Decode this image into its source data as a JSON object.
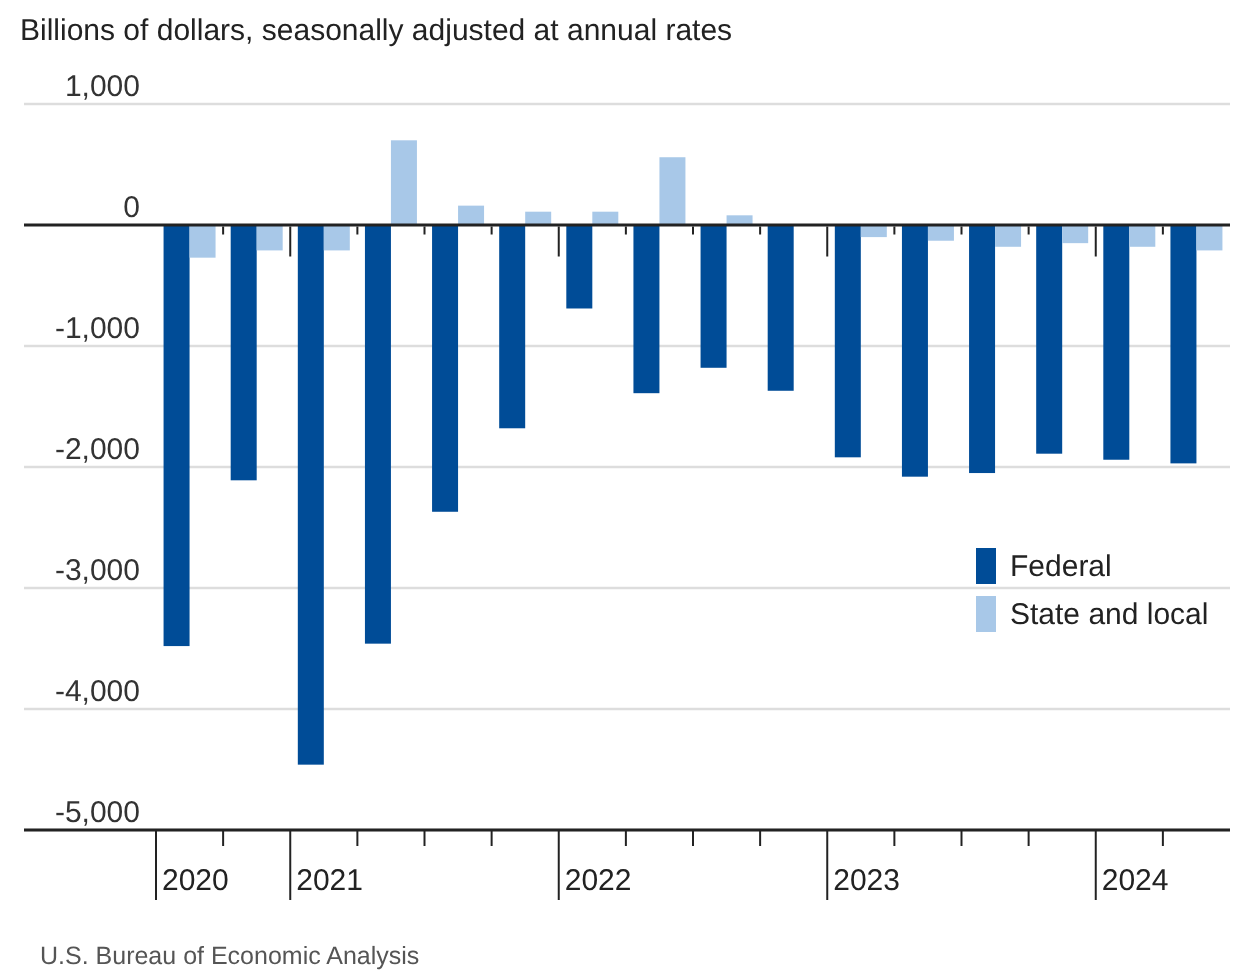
{
  "chart_data": {
    "type": "bar",
    "ylabel": "Billions of dollars, seasonally adjusted at annual rates",
    "categories": [
      "2020",
      null,
      "2021",
      null,
      null,
      null,
      "2022",
      null,
      null,
      null,
      "2023",
      null,
      null,
      null,
      "2024",
      null
    ],
    "series": [
      {
        "name": "Federal",
        "color": "#004c97",
        "values": [
          -3480,
          -2110,
          -4460,
          -3460,
          -2370,
          -1680,
          -690,
          -1390,
          -1180,
          -1370,
          -1920,
          -2080,
          -2050,
          -1890,
          -1940,
          -1970
        ]
      },
      {
        "name": "State and local",
        "color": "#a8c8e8",
        "values": [
          -270,
          -210,
          -210,
          700,
          160,
          110,
          110,
          560,
          80,
          0,
          -100,
          -130,
          -180,
          -150,
          -180,
          -210
        ]
      }
    ],
    "ylim": [
      -5000,
      1000
    ],
    "yticks": [
      {
        "value": -5000,
        "label": "-5,000"
      },
      {
        "value": -4000,
        "label": "-4,000"
      },
      {
        "value": -3000,
        "label": "-3,000"
      },
      {
        "value": -2000,
        "label": "-2,000"
      },
      {
        "value": -1000,
        "label": "-1,000"
      },
      0,
      {
        "value": 1000,
        "label": "1,000"
      }
    ],
    "grid": "y",
    "legend": "right",
    "annotations": [
      "U.S. Bureau of Economic Analysis"
    ]
  }
}
